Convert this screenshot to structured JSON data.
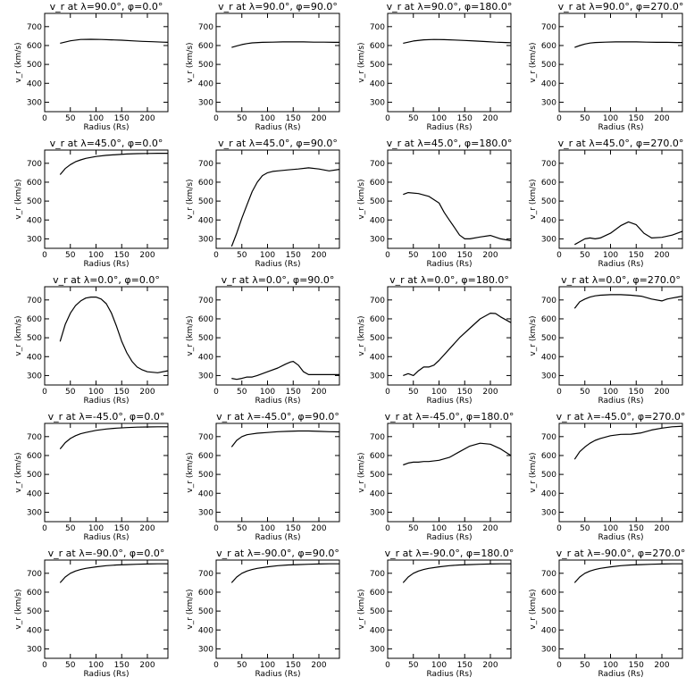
{
  "figure": {
    "background": "#ffffff",
    "line_color": "#000000"
  },
  "chart_data": [
    {
      "type": "line",
      "title": "v_r at λ=90.0°, φ=0.0°",
      "xlabel": "Radius (Rs)",
      "ylabel": "v_r (km/s)",
      "xlim": [
        0,
        240
      ],
      "ylim": [
        250,
        770
      ],
      "xticks": [
        0,
        50,
        100,
        150,
        200
      ],
      "yticks": [
        300,
        400,
        500,
        600,
        700
      ],
      "grid": false,
      "x": [
        30,
        50,
        70,
        90,
        110,
        130,
        150,
        170,
        190,
        210,
        230,
        240
      ],
      "y": [
        612,
        625,
        632,
        633,
        632,
        630,
        628,
        625,
        622,
        620,
        618,
        617
      ]
    },
    {
      "type": "line",
      "title": "v_r at λ=90.0°, φ=90.0°",
      "xlabel": "Radius (Rs)",
      "ylabel": "v_r (km/s)",
      "xlim": [
        0,
        240
      ],
      "ylim": [
        250,
        770
      ],
      "xticks": [
        0,
        50,
        100,
        150,
        200
      ],
      "yticks": [
        300,
        400,
        500,
        600,
        700
      ],
      "grid": false,
      "x": [
        30,
        40,
        50,
        60,
        70,
        90,
        110,
        130,
        150,
        170,
        190,
        210,
        230,
        240
      ],
      "y": [
        590,
        598,
        605,
        610,
        614,
        617,
        618,
        619,
        619,
        619,
        618,
        618,
        617,
        617
      ]
    },
    {
      "type": "line",
      "title": "v_r at λ=90.0°, φ=180.0°",
      "xlabel": "Radius (Rs)",
      "ylabel": "v_r (km/s)",
      "xlim": [
        0,
        240
      ],
      "ylim": [
        250,
        770
      ],
      "xticks": [
        0,
        50,
        100,
        150,
        200
      ],
      "yticks": [
        300,
        400,
        500,
        600,
        700
      ],
      "grid": false,
      "x": [
        30,
        50,
        70,
        90,
        110,
        130,
        150,
        170,
        190,
        210,
        230,
        240
      ],
      "y": [
        612,
        624,
        630,
        632,
        631,
        629,
        627,
        624,
        621,
        618,
        616,
        615
      ]
    },
    {
      "type": "line",
      "title": "v_r at λ=90.0°, φ=270.0°",
      "xlabel": "Radius (Rs)",
      "ylabel": "v_r (km/s)",
      "xlim": [
        0,
        240
      ],
      "ylim": [
        250,
        770
      ],
      "xticks": [
        0,
        50,
        100,
        150,
        200
      ],
      "yticks": [
        300,
        400,
        500,
        600,
        700
      ],
      "grid": false,
      "x": [
        30,
        40,
        50,
        60,
        70,
        90,
        110,
        130,
        150,
        170,
        190,
        210,
        230,
        240
      ],
      "y": [
        590,
        600,
        608,
        613,
        616,
        618,
        619,
        619,
        619,
        618,
        617,
        617,
        616,
        616
      ]
    },
    {
      "type": "line",
      "title": "v_r at λ=45.0°, φ=0.0°",
      "xlabel": "Radius (Rs)",
      "ylabel": "v_r (km/s)",
      "xlim": [
        0,
        240
      ],
      "ylim": [
        250,
        770
      ],
      "xticks": [
        0,
        50,
        100,
        150,
        200
      ],
      "yticks": [
        300,
        400,
        500,
        600,
        700
      ],
      "grid": false,
      "x": [
        30,
        40,
        50,
        60,
        70,
        80,
        100,
        120,
        140,
        160,
        180,
        200,
        220,
        240
      ],
      "y": [
        640,
        672,
        693,
        708,
        718,
        726,
        736,
        742,
        746,
        749,
        751,
        752,
        753,
        753
      ]
    },
    {
      "type": "line",
      "title": "v_r at λ=45.0°, φ=90.0°",
      "xlabel": "Radius (Rs)",
      "ylabel": "v_r (km/s)",
      "xlim": [
        0,
        240
      ],
      "ylim": [
        250,
        770
      ],
      "xticks": [
        0,
        50,
        100,
        150,
        200
      ],
      "yticks": [
        300,
        400,
        500,
        600,
        700
      ],
      "grid": false,
      "x": [
        30,
        40,
        50,
        60,
        70,
        80,
        90,
        100,
        110,
        120,
        140,
        160,
        180,
        200,
        220,
        240
      ],
      "y": [
        260,
        330,
        410,
        480,
        550,
        600,
        635,
        650,
        657,
        660,
        665,
        670,
        676,
        670,
        660,
        668
      ]
    },
    {
      "type": "line",
      "title": "v_r at λ=45.0°, φ=180.0°",
      "xlabel": "Radius (Rs)",
      "ylabel": "v_r (km/s)",
      "xlim": [
        0,
        240
      ],
      "ylim": [
        250,
        770
      ],
      "xticks": [
        0,
        50,
        100,
        150,
        200
      ],
      "yticks": [
        300,
        400,
        500,
        600,
        700
      ],
      "grid": false,
      "x": [
        30,
        40,
        60,
        80,
        100,
        110,
        120,
        130,
        140,
        150,
        160,
        180,
        200,
        220,
        240
      ],
      "y": [
        535,
        545,
        540,
        525,
        490,
        440,
        400,
        360,
        320,
        300,
        300,
        310,
        318,
        300,
        290
      ]
    },
    {
      "type": "line",
      "title": "v_r at λ=45.0°, φ=270.0°",
      "xlabel": "Radius (Rs)",
      "ylabel": "v_r (km/s)",
      "xlim": [
        0,
        240
      ],
      "ylim": [
        250,
        770
      ],
      "xticks": [
        0,
        50,
        100,
        150,
        200
      ],
      "yticks": [
        300,
        400,
        500,
        600,
        700
      ],
      "grid": false,
      "x": [
        30,
        40,
        50,
        60,
        70,
        80,
        100,
        120,
        135,
        150,
        165,
        180,
        200,
        220,
        240
      ],
      "y": [
        270,
        285,
        300,
        305,
        300,
        305,
        330,
        370,
        390,
        375,
        330,
        305,
        308,
        320,
        340
      ]
    },
    {
      "type": "line",
      "title": "v_r at λ=0.0°, φ=0.0°",
      "xlabel": "Radius (Rs)",
      "ylabel": "v_r (km/s)",
      "xlim": [
        0,
        240
      ],
      "ylim": [
        250,
        770
      ],
      "xticks": [
        0,
        50,
        100,
        150,
        200
      ],
      "yticks": [
        300,
        400,
        500,
        600,
        700
      ],
      "grid": false,
      "x": [
        30,
        40,
        50,
        60,
        70,
        80,
        90,
        100,
        110,
        120,
        130,
        140,
        150,
        160,
        170,
        180,
        190,
        200,
        220,
        240
      ],
      "y": [
        480,
        570,
        630,
        670,
        695,
        710,
        715,
        715,
        705,
        680,
        630,
        560,
        480,
        420,
        375,
        345,
        330,
        320,
        315,
        325
      ]
    },
    {
      "type": "line",
      "title": "v_r at λ=0.0°, φ=90.0°",
      "xlabel": "Radius (Rs)",
      "ylabel": "v_r (km/s)",
      "xlim": [
        0,
        240
      ],
      "ylim": [
        250,
        770
      ],
      "xticks": [
        0,
        50,
        100,
        150,
        200
      ],
      "yticks": [
        300,
        400,
        500,
        600,
        700
      ],
      "grid": false,
      "x": [
        30,
        40,
        50,
        60,
        70,
        80,
        100,
        120,
        135,
        145,
        150,
        160,
        170,
        180,
        200,
        220,
        240
      ],
      "y": [
        285,
        280,
        285,
        292,
        292,
        300,
        320,
        340,
        360,
        372,
        375,
        355,
        320,
        305,
        305,
        305,
        305
      ]
    },
    {
      "type": "line",
      "title": "v_r at λ=0.0°, φ=180.0°",
      "xlabel": "Radius (Rs)",
      "ylabel": "v_r (km/s)",
      "xlim": [
        0,
        240
      ],
      "ylim": [
        250,
        770
      ],
      "xticks": [
        0,
        50,
        100,
        150,
        200
      ],
      "yticks": [
        300,
        400,
        500,
        600,
        700
      ],
      "grid": false,
      "x": [
        30,
        40,
        50,
        60,
        70,
        80,
        90,
        100,
        120,
        140,
        160,
        180,
        200,
        210,
        220,
        240
      ],
      "y": [
        300,
        310,
        300,
        325,
        345,
        345,
        355,
        380,
        440,
        500,
        550,
        600,
        630,
        628,
        610,
        580
      ]
    },
    {
      "type": "line",
      "title": "v_r at λ=0.0°, φ=270.0°",
      "xlabel": "Radius (Rs)",
      "ylabel": "v_r (km/s)",
      "xlim": [
        0,
        240
      ],
      "ylim": [
        250,
        770
      ],
      "xticks": [
        0,
        50,
        100,
        150,
        200
      ],
      "yticks": [
        300,
        400,
        500,
        600,
        700
      ],
      "grid": false,
      "x": [
        30,
        40,
        50,
        60,
        70,
        80,
        100,
        120,
        140,
        160,
        180,
        200,
        210,
        220,
        230,
        240
      ],
      "y": [
        655,
        690,
        705,
        715,
        722,
        725,
        728,
        728,
        725,
        720,
        705,
        695,
        705,
        710,
        715,
        720
      ]
    },
    {
      "type": "line",
      "title": "v_r at λ=-45.0°, φ=0.0°",
      "xlabel": "Radius (Rs)",
      "ylabel": "v_r (km/s)",
      "xlim": [
        0,
        240
      ],
      "ylim": [
        250,
        770
      ],
      "xticks": [
        0,
        50,
        100,
        150,
        200
      ],
      "yticks": [
        300,
        400,
        500,
        600,
        700
      ],
      "grid": false,
      "x": [
        30,
        40,
        50,
        60,
        70,
        80,
        100,
        120,
        140,
        160,
        180,
        200,
        220,
        240
      ],
      "y": [
        635,
        668,
        690,
        705,
        715,
        722,
        733,
        740,
        745,
        748,
        750,
        751,
        752,
        752
      ]
    },
    {
      "type": "line",
      "title": "v_r at λ=-45.0°, φ=90.0°",
      "xlabel": "Radius (Rs)",
      "ylabel": "v_r (km/s)",
      "xlim": [
        0,
        240
      ],
      "ylim": [
        250,
        770
      ],
      "xticks": [
        0,
        50,
        100,
        150,
        200
      ],
      "yticks": [
        300,
        400,
        500,
        600,
        700
      ],
      "grid": false,
      "x": [
        30,
        40,
        50,
        60,
        70,
        80,
        100,
        120,
        140,
        160,
        180,
        200,
        220,
        240
      ],
      "y": [
        645,
        680,
        700,
        710,
        714,
        718,
        722,
        726,
        728,
        730,
        730,
        728,
        726,
        725
      ]
    },
    {
      "type": "line",
      "title": "v_r at λ=-45.0°, φ=180.0°",
      "xlabel": "Radius (Rs)",
      "ylabel": "v_r (km/s)",
      "xlim": [
        0,
        240
      ],
      "ylim": [
        250,
        770
      ],
      "xticks": [
        0,
        50,
        100,
        150,
        200
      ],
      "yticks": [
        300,
        400,
        500,
        600,
        700
      ],
      "grid": false,
      "x": [
        30,
        40,
        50,
        60,
        70,
        80,
        100,
        120,
        140,
        160,
        180,
        200,
        220,
        240
      ],
      "y": [
        550,
        560,
        565,
        565,
        568,
        568,
        575,
        590,
        620,
        650,
        665,
        660,
        635,
        600
      ]
    },
    {
      "type": "line",
      "title": "v_r at λ=-45.0°, φ=270.0°",
      "xlabel": "Radius (Rs)",
      "ylabel": "v_r (km/s)",
      "xlim": [
        0,
        240
      ],
      "ylim": [
        250,
        770
      ],
      "xticks": [
        0,
        50,
        100,
        150,
        200
      ],
      "yticks": [
        300,
        400,
        500,
        600,
        700
      ],
      "grid": false,
      "x": [
        30,
        40,
        50,
        60,
        70,
        80,
        100,
        120,
        140,
        160,
        180,
        200,
        220,
        240
      ],
      "y": [
        580,
        620,
        645,
        665,
        680,
        690,
        705,
        712,
        713,
        720,
        735,
        745,
        752,
        755
      ]
    },
    {
      "type": "line",
      "title": "v_r at λ=-90.0°, φ=0.0°",
      "xlabel": "Radius (Rs)",
      "ylabel": "v_r (km/s)",
      "xlim": [
        0,
        240
      ],
      "ylim": [
        250,
        770
      ],
      "xticks": [
        0,
        50,
        100,
        150,
        200
      ],
      "yticks": [
        300,
        400,
        500,
        600,
        700
      ],
      "grid": false,
      "x": [
        30,
        40,
        50,
        60,
        70,
        80,
        100,
        120,
        140,
        160,
        180,
        200,
        220,
        240
      ],
      "y": [
        650,
        680,
        700,
        712,
        720,
        726,
        734,
        740,
        744,
        746,
        748,
        749,
        750,
        750
      ]
    },
    {
      "type": "line",
      "title": "v_r at λ=-90.0°, φ=90.0°",
      "xlabel": "Radius (Rs)",
      "ylabel": "v_r (km/s)",
      "xlim": [
        0,
        240
      ],
      "ylim": [
        250,
        770
      ],
      "xticks": [
        0,
        50,
        100,
        150,
        200
      ],
      "yticks": [
        300,
        400,
        500,
        600,
        700
      ],
      "grid": false,
      "x": [
        30,
        40,
        50,
        60,
        70,
        80,
        100,
        120,
        140,
        160,
        180,
        200,
        220,
        240
      ],
      "y": [
        650,
        680,
        700,
        712,
        720,
        726,
        734,
        740,
        744,
        746,
        748,
        749,
        750,
        750
      ]
    },
    {
      "type": "line",
      "title": "v_r at λ=-90.0°, φ=180.0°",
      "xlabel": "Radius (Rs)",
      "ylabel": "v_r (km/s)",
      "xlim": [
        0,
        240
      ],
      "ylim": [
        250,
        770
      ],
      "xticks": [
        0,
        50,
        100,
        150,
        200
      ],
      "yticks": [
        300,
        400,
        500,
        600,
        700
      ],
      "grid": false,
      "x": [
        30,
        40,
        50,
        60,
        70,
        80,
        100,
        120,
        140,
        160,
        180,
        200,
        220,
        240
      ],
      "y": [
        650,
        680,
        700,
        712,
        720,
        726,
        734,
        740,
        744,
        746,
        748,
        749,
        750,
        750
      ]
    },
    {
      "type": "line",
      "title": "v_r at λ=-90.0°, φ=270.0°",
      "xlabel": "Radius (Rs)",
      "ylabel": "v_r (km/s)",
      "xlim": [
        0,
        240
      ],
      "ylim": [
        250,
        770
      ],
      "xticks": [
        0,
        50,
        100,
        150,
        200
      ],
      "yticks": [
        300,
        400,
        500,
        600,
        700
      ],
      "grid": false,
      "x": [
        30,
        40,
        50,
        60,
        70,
        80,
        100,
        120,
        140,
        160,
        180,
        200,
        220,
        240
      ],
      "y": [
        650,
        680,
        700,
        712,
        720,
        726,
        734,
        740,
        744,
        746,
        748,
        749,
        750,
        750
      ]
    }
  ]
}
